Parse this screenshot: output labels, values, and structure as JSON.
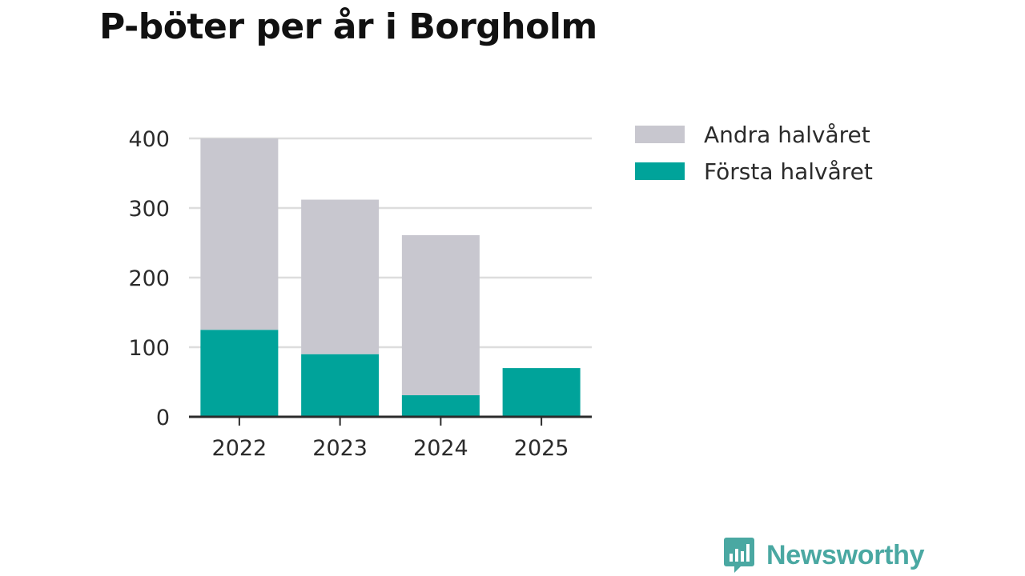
{
  "chart_data": {
    "type": "bar",
    "stacked": true,
    "title": "P-böter per år i Borgholm",
    "xlabel": "",
    "ylabel": "",
    "categories": [
      "2022",
      "2023",
      "2024",
      "2025"
    ],
    "series": [
      {
        "name": "Första halvåret",
        "values": [
          125,
          90,
          31,
          70
        ],
        "color": "#00a39a"
      },
      {
        "name": "Andra halvåret",
        "values": [
          275,
          222,
          230,
          0
        ],
        "color": "#c8c7cf"
      }
    ],
    "ylim": [
      0,
      400
    ],
    "yticks": [
      "0",
      "100",
      "200",
      "300",
      "400"
    ],
    "grid": true,
    "legend_position": "right",
    "legend_order": [
      "Andra halvåret",
      "Första halvåret"
    ]
  },
  "colors": {
    "grid": "#dddddd",
    "axis": "#2b2b2b",
    "brand": "#4aa8a2"
  },
  "branding": {
    "name": "Newsworthy",
    "icon": "newsworthy-logo-icon"
  }
}
